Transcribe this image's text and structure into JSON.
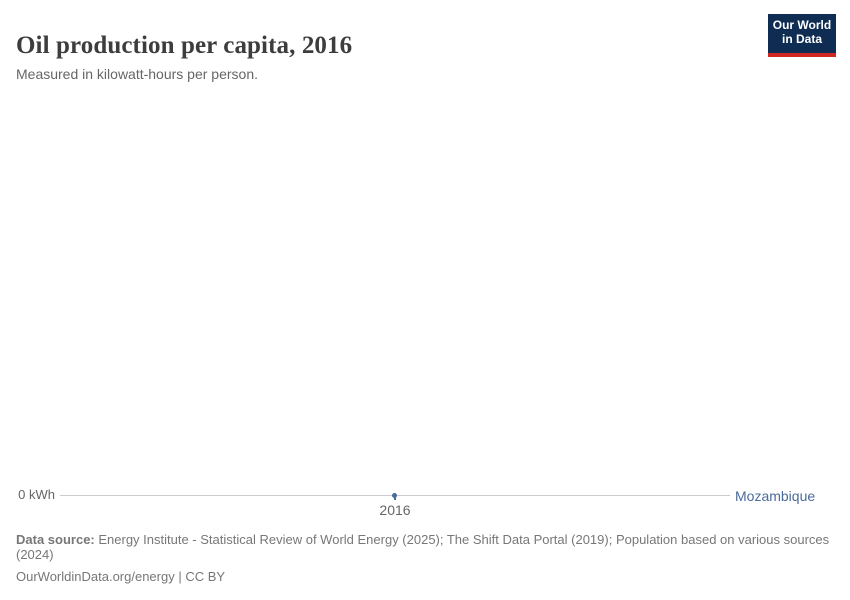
{
  "header": {
    "title": "Oil production per capita, 2016",
    "subtitle": "Measured in kilowatt-hours per person.",
    "logo": {
      "line1": "Our World",
      "line2": "in Data"
    }
  },
  "chart_data": {
    "type": "line",
    "title": "Oil production per capita, 2016",
    "unit": "kilowatt-hours per person",
    "x": [
      2016
    ],
    "series": [
      {
        "name": "Mozambique",
        "values": [
          0
        ],
        "color": "#4c6a9c"
      }
    ],
    "x_tick_labels": [
      "2016"
    ],
    "y_tick_labels": [
      "0 kWh"
    ],
    "ylim": [
      0,
      0
    ],
    "grid": false,
    "legend_position": "right-of-line"
  },
  "axis": {
    "y_zero_label": "0 kWh",
    "x_tick_label": "2016",
    "entity_label": "Mozambique"
  },
  "footer": {
    "source_label": "Data source:",
    "source_text": " Energy Institute - Statistical Review of World Energy (2025); The Shift Data Portal (2019); Population based on various sources (2024)",
    "citation": "OurWorldinData.org/energy | CC BY"
  },
  "colors": {
    "series_blue": "#4c6a9c",
    "logo_navy": "#0f2d52",
    "logo_red": "#cf2621",
    "axis_line": "#cccccc",
    "title_text": "#3d3d3d",
    "secondary_text": "#666666",
    "footer_text": "#777777"
  }
}
